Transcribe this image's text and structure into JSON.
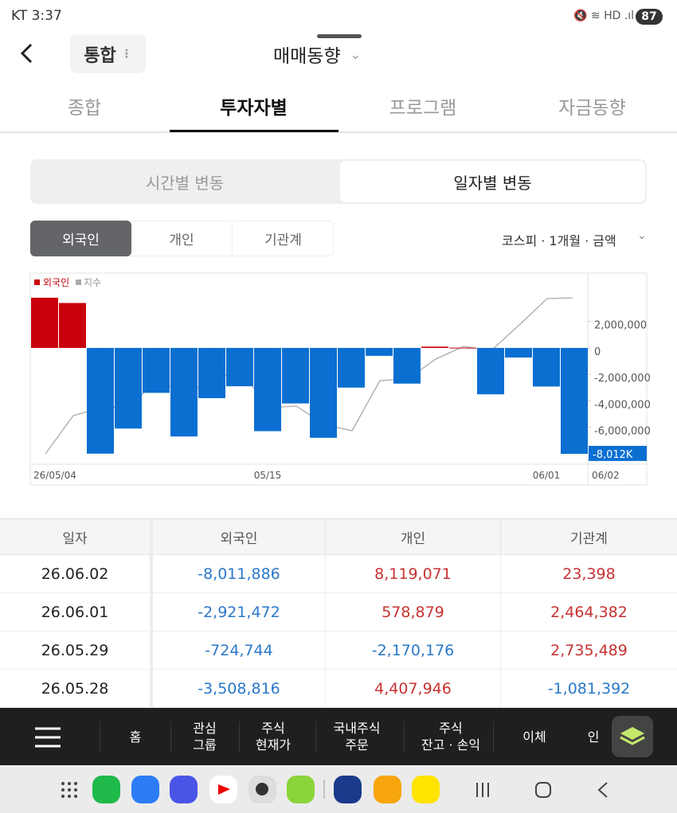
{
  "status": {
    "carrier_time": "KT 3:37",
    "battery": "87"
  },
  "header": {
    "pill": "통합",
    "title": "매매동향"
  },
  "tabs": [
    "종합",
    "투자자별",
    "프로그램",
    "자금동향"
  ],
  "segment": [
    "시간별 변동",
    "일자별 변동"
  ],
  "filters": [
    "외국인",
    "개인",
    "기관계"
  ],
  "options": "코스피 · 1개월 · 금액",
  "chart_data": {
    "type": "bar",
    "legend": [
      "외국인",
      "지수"
    ],
    "categories": [
      "26/05/04",
      null,
      null,
      null,
      null,
      null,
      null,
      null,
      "05/15",
      null,
      null,
      null,
      null,
      null,
      null,
      null,
      null,
      null,
      "06/01",
      "06/02"
    ],
    "series": [
      {
        "name": "외국인",
        "values": [
          3800000,
          3400000,
          -8000000,
          -6100000,
          -3400000,
          -6700000,
          -3800000,
          -2900000,
          -6300000,
          -4200000,
          -6800000,
          -3000000,
          -600000,
          -2700000,
          100000,
          20000,
          -3508816,
          -724744,
          -2921472,
          -8011886
        ]
      }
    ],
    "pos_color": "#c9000b",
    "neg_color": "#0a6fd1",
    "ylim": [
      -8800000,
      5660000
    ],
    "yticks": [
      {
        "value": 2000000,
        "label": "2,000,000"
      },
      0,
      {
        "value": -2000000,
        "label": "-2,000,000"
      },
      {
        "value": -4000000,
        "label": "-4,000,000"
      },
      {
        "value": -6000000,
        "label": "-6,000,000"
      }
    ],
    "last_label": "-8,012K"
  },
  "table": {
    "header": [
      "일자",
      "외국인",
      "개인",
      "기관계"
    ],
    "rows": [
      [
        "26.06.02",
        "-8,011,886",
        "8,119,071",
        "23,398"
      ],
      [
        "26.06.01",
        "-2,921,472",
        "578,879",
        "2,464,382"
      ],
      [
        "26.05.29",
        "-724,744",
        "-2,170,176",
        "2,735,489"
      ],
      [
        "26.05.28",
        "-3,508,816",
        "4,407,946",
        "-1,081,392"
      ]
    ]
  },
  "nav": [
    [
      "홈"
    ],
    [
      "관심",
      "그룹"
    ],
    [
      "주식",
      "현재가"
    ],
    [
      "국내주식",
      "주문"
    ],
    [
      "주식",
      "잔고 · 손익"
    ],
    [
      "이체"
    ],
    [
      "인"
    ]
  ]
}
